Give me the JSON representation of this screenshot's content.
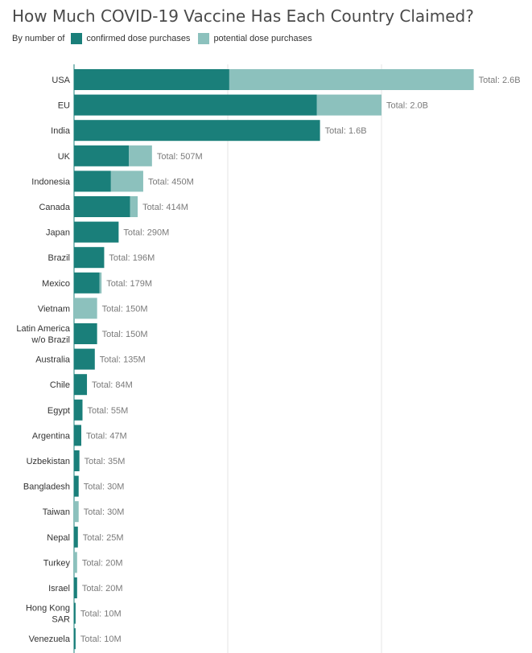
{
  "title": "How Much COVID-19 Vaccine Has Each Country Claimed?",
  "legend": {
    "prefix": "By number of",
    "confirmed_label": "confirmed dose purchases",
    "potential_label": "potential dose purchases"
  },
  "colors": {
    "confirmed": "#1a7f7a",
    "potential": "#8cc1bd",
    "grid": "#e6e6e6",
    "axis": "#1a7f7a"
  },
  "chart_data": {
    "type": "bar",
    "orientation": "horizontal",
    "stacked": true,
    "unit": "doses (millions)",
    "xlim": [
      0,
      3000
    ],
    "grid": true,
    "legend_position": "top-left",
    "categories": [
      "USA",
      "EU",
      "India",
      "UK",
      "Indonesia",
      "Canada",
      "Japan",
      "Brazil",
      "Mexico",
      "Vietnam",
      "Latin America w/o Brazil",
      "Australia",
      "Chile",
      "Egypt",
      "Argentina",
      "Uzbekistan",
      "Bangladesh",
      "Taiwan",
      "Nepal",
      "Turkey",
      "Israel",
      "Hong Kong SAR",
      "Venezuela"
    ],
    "category_lines": [
      [
        "USA"
      ],
      [
        "EU"
      ],
      [
        "India"
      ],
      [
        "UK"
      ],
      [
        "Indonesia"
      ],
      [
        "Canada"
      ],
      [
        "Japan"
      ],
      [
        "Brazil"
      ],
      [
        "Mexico"
      ],
      [
        "Vietnam"
      ],
      [
        "Latin America",
        "w/o Brazil"
      ],
      [
        "Australia"
      ],
      [
        "Chile"
      ],
      [
        "Egypt"
      ],
      [
        "Argentina"
      ],
      [
        "Uzbekistan"
      ],
      [
        "Bangladesh"
      ],
      [
        "Taiwan"
      ],
      [
        "Nepal"
      ],
      [
        "Turkey"
      ],
      [
        "Israel"
      ],
      [
        "Hong Kong",
        "SAR"
      ],
      [
        "Venezuela"
      ]
    ],
    "series": [
      {
        "name": "confirmed dose purchases",
        "values": [
          1010,
          1580,
          1600,
          357,
          240,
          364,
          290,
          196,
          165,
          0,
          150,
          135,
          84,
          55,
          47,
          35,
          30,
          0,
          25,
          0,
          20,
          10,
          10
        ]
      },
      {
        "name": "potential dose purchases",
        "values": [
          1590,
          420,
          0,
          150,
          210,
          50,
          0,
          0,
          14,
          150,
          0,
          0,
          0,
          0,
          0,
          0,
          0,
          30,
          0,
          20,
          0,
          0,
          0
        ]
      }
    ],
    "total_labels": [
      "Total: 2.6B",
      "Total: 2.0B",
      "Total: 1.6B",
      "Total: 507M",
      "Total: 450M",
      "Total: 414M",
      "Total: 290M",
      "Total: 196M",
      "Total: 179M",
      "Total: 150M",
      "Total: 150M",
      "Total: 135M",
      "Total: 84M",
      "Total: 55M",
      "Total: 47M",
      "Total: 35M",
      "Total: 30M",
      "Total: 30M",
      "Total: 25M",
      "Total: 20M",
      "Total: 20M",
      "Total: 10M",
      "Total: 10M"
    ]
  }
}
